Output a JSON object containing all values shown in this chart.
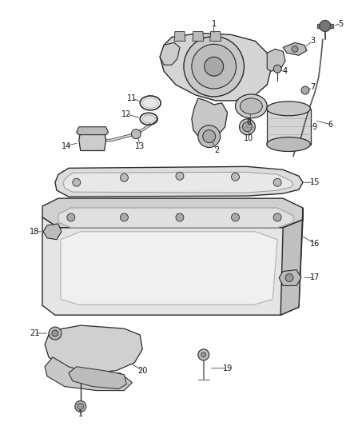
{
  "background_color": "#ffffff",
  "figure_width": 4.38,
  "figure_height": 5.33,
  "dpi": 100,
  "line_color": "#2a2a2a",
  "label_fontsize": 7.0,
  "label_color": "#111111",
  "callout_color": "#444444"
}
